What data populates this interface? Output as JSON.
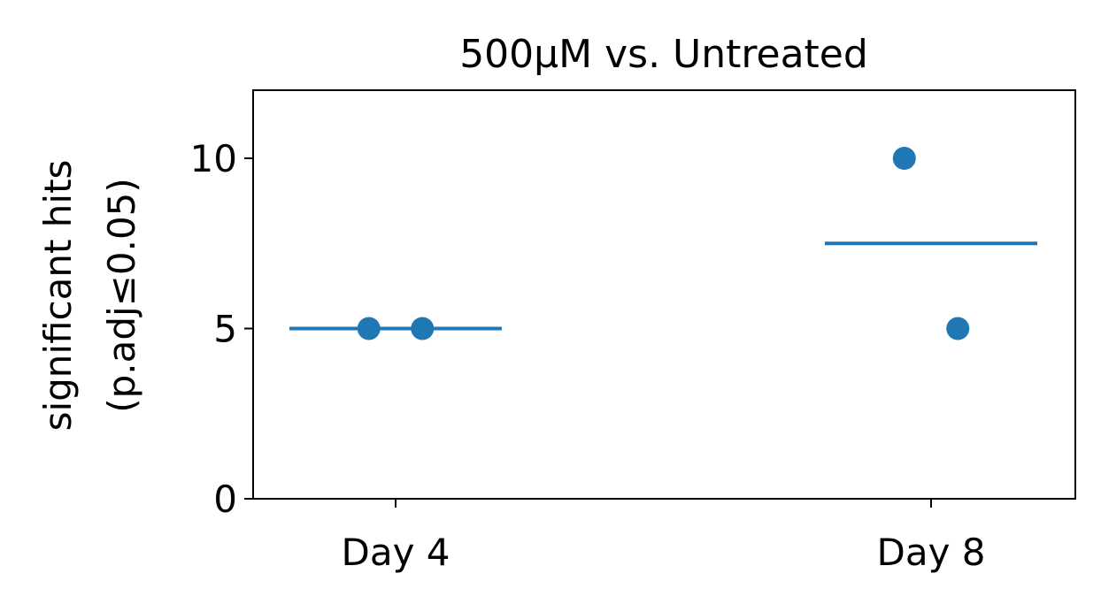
{
  "chart_data": {
    "type": "scatter",
    "title": "500μM vs. Untreated",
    "ylabel_line1": "significant hits",
    "ylabel_line2": "(p.adj≤0.05)",
    "xlabel": "",
    "categories": [
      "Day 4",
      "Day 8"
    ],
    "ylim": [
      0,
      12
    ],
    "yticks": [
      0,
      5,
      10
    ],
    "grid": false,
    "series": [
      {
        "points": [
          {
            "category": "Day 4",
            "y": 5,
            "jitter": -0.05
          },
          {
            "category": "Day 4",
            "y": 5,
            "jitter": 0.05
          },
          {
            "category": "Day 8",
            "y": 10,
            "jitter": -0.05
          },
          {
            "category": "Day 8",
            "y": 5,
            "jitter": 0.05
          }
        ],
        "means": [
          {
            "category": "Day 4",
            "y": 5
          },
          {
            "category": "Day 8",
            "y": 7.5
          }
        ],
        "color": "#1f77b4"
      }
    ]
  }
}
